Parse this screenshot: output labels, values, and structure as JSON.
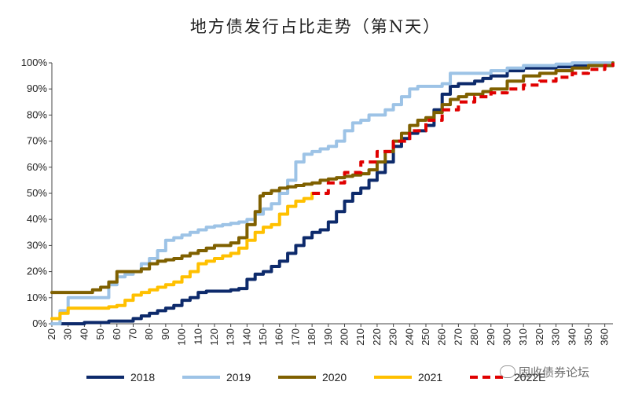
{
  "title": "地方债发行占比走势（第N天）",
  "watermark": "固收债券论坛",
  "chart_data": {
    "type": "line",
    "title": "地方债发行占比走势（第N天）",
    "xlabel": "",
    "ylabel": "",
    "xlim": [
      20,
      365
    ],
    "ylim": [
      0,
      100
    ],
    "x_ticks": [
      20,
      30,
      40,
      50,
      60,
      70,
      80,
      90,
      100,
      110,
      120,
      130,
      140,
      150,
      160,
      170,
      180,
      190,
      200,
      210,
      220,
      230,
      240,
      250,
      260,
      270,
      280,
      290,
      300,
      310,
      320,
      330,
      340,
      350,
      360
    ],
    "y_ticks": [
      0,
      10,
      20,
      30,
      40,
      50,
      60,
      70,
      80,
      90,
      100
    ],
    "y_tick_labels": [
      "0%",
      "10%",
      "20%",
      "30%",
      "40%",
      "50%",
      "60%",
      "70%",
      "80%",
      "90%",
      "100%"
    ],
    "grid": false,
    "legend_position": "bottom",
    "series": [
      {
        "name": "2018",
        "color": "#0d2a6b",
        "dash": false,
        "x": [
          20,
          40,
          55,
          65,
          70,
          75,
          80,
          85,
          90,
          95,
          100,
          105,
          110,
          115,
          120,
          125,
          130,
          135,
          140,
          145,
          150,
          155,
          160,
          165,
          170,
          175,
          180,
          185,
          190,
          195,
          200,
          205,
          210,
          215,
          220,
          225,
          230,
          235,
          240,
          245,
          250,
          255,
          260,
          265,
          270,
          275,
          280,
          285,
          290,
          300,
          310,
          320,
          330,
          340,
          350,
          365
        ],
        "y": [
          0,
          0.5,
          1,
          1,
          2,
          3,
          4,
          5,
          6,
          7,
          9,
          10,
          12,
          12.5,
          12.5,
          12.5,
          13,
          13.5,
          17,
          19,
          20,
          22,
          24,
          27,
          30,
          33,
          35,
          36,
          39,
          43,
          47,
          50,
          52,
          55,
          58,
          62,
          68,
          71,
          73,
          74,
          76,
          82,
          88,
          91,
          92,
          92,
          93,
          94,
          95,
          97,
          98,
          98,
          98.5,
          99,
          99,
          100
        ]
      },
      {
        "name": "2019",
        "color": "#9dc3e6",
        "dash": false,
        "x": [
          20,
          25,
          30,
          40,
          50,
          55,
          60,
          65,
          70,
          75,
          80,
          85,
          90,
          95,
          100,
          105,
          110,
          115,
          120,
          125,
          130,
          135,
          140,
          145,
          150,
          155,
          160,
          165,
          170,
          175,
          180,
          185,
          190,
          195,
          200,
          205,
          210,
          215,
          220,
          225,
          230,
          235,
          240,
          245,
          250,
          255,
          260,
          265,
          270,
          280,
          290,
          300,
          310,
          320,
          330,
          340,
          350,
          365
        ],
        "y": [
          0,
          5,
          10,
          10,
          10,
          15,
          18,
          19,
          20,
          23,
          25,
          28,
          32,
          33,
          34,
          35,
          36,
          37,
          37.5,
          38,
          38.5,
          39,
          40,
          42,
          44,
          46,
          50,
          55,
          62,
          65,
          66,
          67,
          68,
          70,
          74,
          77,
          78,
          80,
          80,
          82,
          84,
          87,
          90,
          91,
          91,
          91,
          92,
          96,
          96,
          96,
          97,
          98,
          99,
          99,
          99.5,
          100,
          100,
          100
        ]
      },
      {
        "name": "2020",
        "color": "#7f6000",
        "dash": false,
        "x": [
          20,
          40,
          45,
          50,
          55,
          60,
          65,
          70,
          75,
          80,
          85,
          90,
          95,
          100,
          105,
          110,
          115,
          120,
          125,
          130,
          135,
          140,
          145,
          148,
          150,
          155,
          160,
          165,
          170,
          175,
          180,
          185,
          190,
          195,
          200,
          205,
          210,
          215,
          220,
          225,
          230,
          235,
          240,
          245,
          250,
          255,
          260,
          265,
          270,
          275,
          280,
          285,
          290,
          300,
          310,
          320,
          330,
          340,
          350,
          365
        ],
        "y": [
          12,
          12,
          13,
          14,
          16,
          20,
          20,
          20,
          21,
          23,
          24,
          24.5,
          25,
          26,
          27,
          28,
          29,
          30,
          30,
          31,
          33,
          38,
          43,
          49,
          50,
          51,
          52,
          52.5,
          53,
          53.5,
          54,
          55,
          55.5,
          56,
          56.5,
          57,
          57.5,
          59,
          62,
          66,
          70,
          73,
          76,
          78,
          79,
          81,
          84,
          86,
          87,
          88,
          88,
          89,
          90,
          93,
          95,
          96,
          97,
          98,
          99,
          100
        ]
      },
      {
        "name": "2021",
        "color": "#ffc000",
        "dash": false,
        "x": [
          20,
          25,
          30,
          40,
          50,
          55,
          60,
          65,
          70,
          75,
          80,
          85,
          90,
          95,
          100,
          105,
          110,
          115,
          120,
          125,
          130,
          135,
          140,
          145,
          150,
          155,
          160,
          165,
          170,
          175,
          180
        ],
        "y": [
          2,
          4,
          6,
          6,
          6,
          6.5,
          7,
          9,
          11,
          12,
          13,
          14,
          15,
          16,
          18,
          20,
          23,
          24,
          25,
          26,
          27,
          29,
          32,
          35,
          37,
          38,
          42,
          45,
          47,
          48,
          50
        ]
      },
      {
        "name": "2022E",
        "color": "#e00000",
        "dash": true,
        "x": [
          180,
          190,
          200,
          210,
          220,
          230,
          240,
          250,
          260,
          270,
          280,
          290,
          300,
          310,
          320,
          330,
          340,
          350,
          360,
          365
        ],
        "y": [
          50,
          54,
          58,
          62,
          66,
          70,
          74,
          78,
          82,
          85,
          87,
          88.5,
          90,
          91.5,
          93,
          94.5,
          96,
          97.5,
          99,
          100
        ]
      }
    ]
  }
}
